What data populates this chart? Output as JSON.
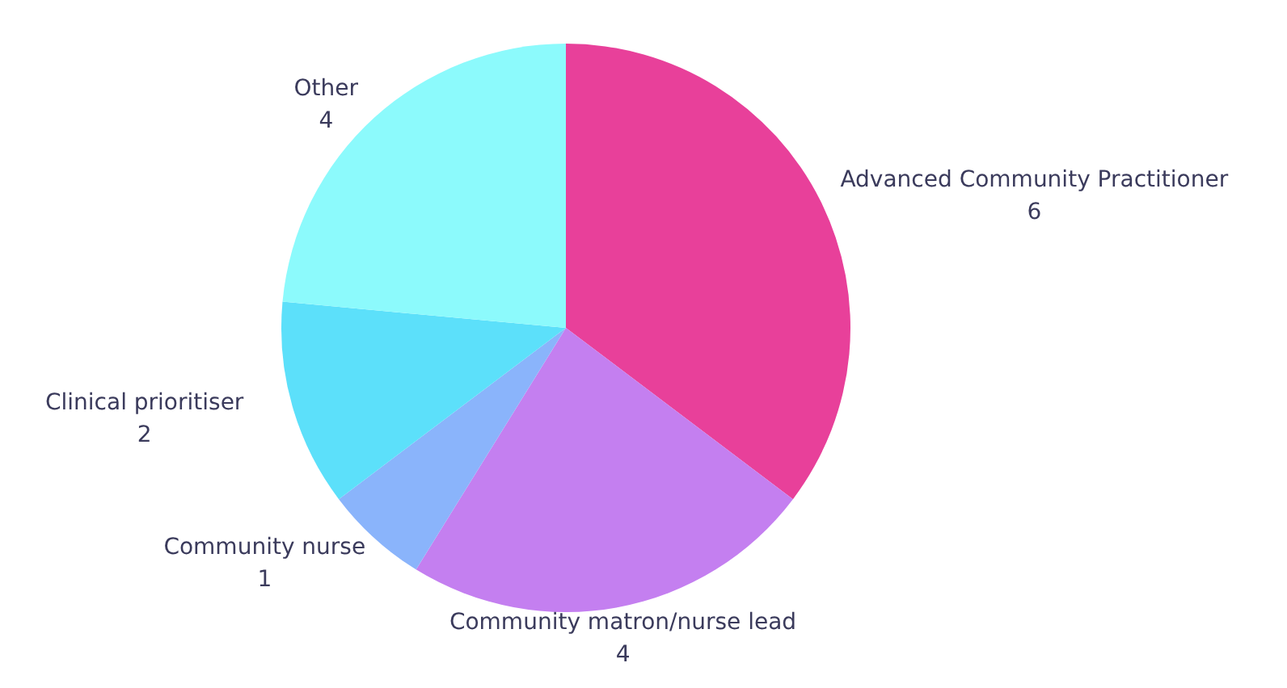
{
  "chart_data": {
    "type": "pie",
    "categories": [
      "Advanced Community Practitioner",
      "Community matron/nurse lead",
      "Community nurse",
      "Clinical prioritiser",
      "Other"
    ],
    "values": [
      6,
      4,
      1,
      2,
      4
    ],
    "colors": [
      "#e8409a",
      "#c47ff0",
      "#8ab4fb",
      "#5ce0fa",
      "#8cfafc"
    ],
    "data_labels": true,
    "legend": false
  }
}
